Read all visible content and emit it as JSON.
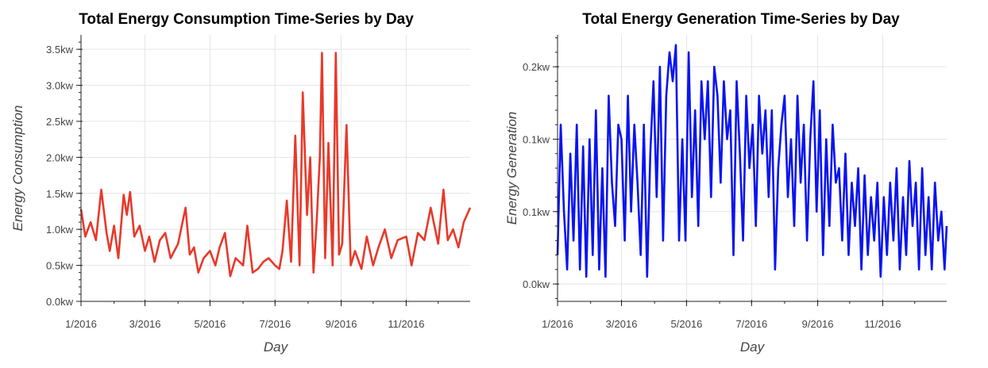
{
  "chart_data": [
    {
      "type": "line",
      "title": "Total Energy Consumption Time-Series by Day",
      "xlabel": "Day",
      "ylabel": "Energy Consumption",
      "line_color": "#e8392a",
      "x_ticks": [
        "1/2016",
        "3/2016",
        "5/2016",
        "7/2016",
        "9/2016",
        "11/2016"
      ],
      "x_range": [
        "2016-01-01",
        "2016-12-31"
      ],
      "y_ticks": [
        "0.0kw",
        "0.5kw",
        "1.0kw",
        "1.5kw",
        "2.0kw",
        "2.5kw",
        "3.0kw",
        "3.5kw"
      ],
      "y_tick_values": [
        0,
        0.5,
        1.0,
        1.5,
        2.0,
        2.5,
        3.0,
        3.5
      ],
      "ylim": [
        0,
        3.7
      ],
      "grid": true,
      "series": [
        {
          "x": [
            "2016-01-01",
            "2016-01-05",
            "2016-01-10",
            "2016-01-15",
            "2016-01-20",
            "2016-01-25",
            "2016-01-28",
            "2016-02-01",
            "2016-02-05",
            "2016-02-10",
            "2016-02-13",
            "2016-02-16",
            "2016-02-20",
            "2016-02-25",
            "2016-03-01",
            "2016-03-05",
            "2016-03-10",
            "2016-03-15",
            "2016-03-20",
            "2016-03-25",
            "2016-04-01",
            "2016-04-08",
            "2016-04-12",
            "2016-04-16",
            "2016-04-20",
            "2016-04-25",
            "2016-05-01",
            "2016-05-06",
            "2016-05-10",
            "2016-05-15",
            "2016-05-20",
            "2016-05-25",
            "2016-06-01",
            "2016-06-05",
            "2016-06-10",
            "2016-06-15",
            "2016-06-20",
            "2016-06-25",
            "2016-07-01",
            "2016-07-05",
            "2016-07-08",
            "2016-07-12",
            "2016-07-16",
            "2016-07-20",
            "2016-07-24",
            "2016-07-27",
            "2016-07-31",
            "2016-08-03",
            "2016-08-06",
            "2016-08-09",
            "2016-08-12",
            "2016-08-14",
            "2016-08-17",
            "2016-08-20",
            "2016-08-24",
            "2016-08-27",
            "2016-08-30",
            "2016-09-02",
            "2016-09-06",
            "2016-09-10",
            "2016-09-14",
            "2016-09-20",
            "2016-09-25",
            "2016-10-01",
            "2016-10-06",
            "2016-10-12",
            "2016-10-18",
            "2016-10-24",
            "2016-11-01",
            "2016-11-06",
            "2016-11-12",
            "2016-11-18",
            "2016-11-24",
            "2016-12-01",
            "2016-12-06",
            "2016-12-10",
            "2016-12-15",
            "2016-12-20",
            "2016-12-25",
            "2016-12-31"
          ],
          "y": [
            1.28,
            0.9,
            1.1,
            0.85,
            1.55,
            0.95,
            0.7,
            1.05,
            0.6,
            1.48,
            1.2,
            1.52,
            0.9,
            1.05,
            0.7,
            0.9,
            0.55,
            0.85,
            0.95,
            0.6,
            0.8,
            1.3,
            0.65,
            0.75,
            0.4,
            0.6,
            0.7,
            0.5,
            0.75,
            0.95,
            0.35,
            0.6,
            0.5,
            1.05,
            0.4,
            0.45,
            0.55,
            0.6,
            0.5,
            0.45,
            0.7,
            1.4,
            0.55,
            2.3,
            0.5,
            2.9,
            1.2,
            2.0,
            0.4,
            1.1,
            2.0,
            3.45,
            0.6,
            2.2,
            0.5,
            3.45,
            0.65,
            0.8,
            2.45,
            0.5,
            0.7,
            0.45,
            0.9,
            0.5,
            0.75,
            1.0,
            0.6,
            0.85,
            0.9,
            0.5,
            0.95,
            0.85,
            1.3,
            0.8,
            1.55,
            0.85,
            1.0,
            0.75,
            1.1,
            1.3
          ]
        }
      ]
    },
    {
      "type": "line",
      "title": "Total Energy Generation Time-Series by Day",
      "xlabel": "Day",
      "ylabel": "Energy Generation",
      "line_color": "#0a14f0",
      "x_ticks": [
        "1/2016",
        "3/2016",
        "5/2016",
        "7/2016",
        "9/2016",
        "11/2016"
      ],
      "x_range": [
        "2016-01-01",
        "2016-12-31"
      ],
      "y_ticks": [
        "0.0kw",
        "0.1kw",
        "0.1kw",
        "0.2kw"
      ],
      "y_tick_values": [
        0,
        0.05,
        0.1,
        0.15
      ],
      "ylim": [
        -0.012,
        0.172
      ],
      "grid": true,
      "series": [
        {
          "x": [
            "2016-01-01",
            "2016-01-04",
            "2016-01-07",
            "2016-01-10",
            "2016-01-13",
            "2016-01-16",
            "2016-01-19",
            "2016-01-22",
            "2016-01-25",
            "2016-01-28",
            "2016-01-31",
            "2016-02-03",
            "2016-02-06",
            "2016-02-09",
            "2016-02-12",
            "2016-02-15",
            "2016-02-18",
            "2016-02-21",
            "2016-02-24",
            "2016-02-27",
            "2016-03-01",
            "2016-03-04",
            "2016-03-07",
            "2016-03-10",
            "2016-03-13",
            "2016-03-16",
            "2016-03-19",
            "2016-03-22",
            "2016-03-25",
            "2016-03-28",
            "2016-03-31",
            "2016-04-03",
            "2016-04-06",
            "2016-04-09",
            "2016-04-12",
            "2016-04-15",
            "2016-04-18",
            "2016-04-21",
            "2016-04-24",
            "2016-04-27",
            "2016-04-30",
            "2016-05-03",
            "2016-05-06",
            "2016-05-09",
            "2016-05-12",
            "2016-05-15",
            "2016-05-18",
            "2016-05-21",
            "2016-05-24",
            "2016-05-27",
            "2016-05-30",
            "2016-06-02",
            "2016-06-05",
            "2016-06-08",
            "2016-06-11",
            "2016-06-14",
            "2016-06-17",
            "2016-06-20",
            "2016-06-23",
            "2016-06-26",
            "2016-06-29",
            "2016-07-02",
            "2016-07-05",
            "2016-07-08",
            "2016-07-11",
            "2016-07-14",
            "2016-07-17",
            "2016-07-20",
            "2016-07-23",
            "2016-07-26",
            "2016-07-29",
            "2016-08-01",
            "2016-08-04",
            "2016-08-07",
            "2016-08-10",
            "2016-08-13",
            "2016-08-16",
            "2016-08-19",
            "2016-08-22",
            "2016-08-25",
            "2016-08-28",
            "2016-08-31",
            "2016-09-03",
            "2016-09-06",
            "2016-09-09",
            "2016-09-12",
            "2016-09-15",
            "2016-09-18",
            "2016-09-21",
            "2016-09-24",
            "2016-09-27",
            "2016-09-30",
            "2016-10-03",
            "2016-10-06",
            "2016-10-09",
            "2016-10-12",
            "2016-10-15",
            "2016-10-18",
            "2016-10-21",
            "2016-10-24",
            "2016-10-27",
            "2016-10-30",
            "2016-11-02",
            "2016-11-05",
            "2016-11-08",
            "2016-11-11",
            "2016-11-14",
            "2016-11-17",
            "2016-11-20",
            "2016-11-23",
            "2016-11-26",
            "2016-11-29",
            "2016-12-02",
            "2016-12-05",
            "2016-12-08",
            "2016-12-11",
            "2016-12-14",
            "2016-12-17",
            "2016-12-20",
            "2016-12-23",
            "2016-12-26",
            "2016-12-29",
            "2016-12-31"
          ],
          "y": [
            0.02,
            0.11,
            0.05,
            0.01,
            0.09,
            0.03,
            0.11,
            0.01,
            0.095,
            0.005,
            0.1,
            0.02,
            0.12,
            0.01,
            0.08,
            0.005,
            0.13,
            0.07,
            0.04,
            0.11,
            0.1,
            0.03,
            0.13,
            0.05,
            0.11,
            0.07,
            0.02,
            0.11,
            0.005,
            0.09,
            0.14,
            0.06,
            0.15,
            0.03,
            0.13,
            0.16,
            0.14,
            0.165,
            0.03,
            0.1,
            0.03,
            0.16,
            0.06,
            0.12,
            0.04,
            0.14,
            0.1,
            0.14,
            0.06,
            0.15,
            0.13,
            0.07,
            0.14,
            0.1,
            0.12,
            0.02,
            0.14,
            0.09,
            0.03,
            0.13,
            0.08,
            0.11,
            0.04,
            0.13,
            0.09,
            0.12,
            0.06,
            0.12,
            0.01,
            0.08,
            0.11,
            0.13,
            0.06,
            0.1,
            0.04,
            0.13,
            0.07,
            0.11,
            0.03,
            0.1,
            0.14,
            0.05,
            0.12,
            0.02,
            0.1,
            0.04,
            0.11,
            0.07,
            0.08,
            0.03,
            0.09,
            0.02,
            0.07,
            0.04,
            0.08,
            0.01,
            0.075,
            0.02,
            0.06,
            0.03,
            0.07,
            0.005,
            0.06,
            0.02,
            0.07,
            0.03,
            0.08,
            0.01,
            0.06,
            0.02,
            0.085,
            0.04,
            0.07,
            0.01,
            0.08,
            0.02,
            0.06,
            0.01,
            0.07,
            0.03,
            0.05,
            0.01,
            0.04
          ]
        }
      ]
    }
  ]
}
